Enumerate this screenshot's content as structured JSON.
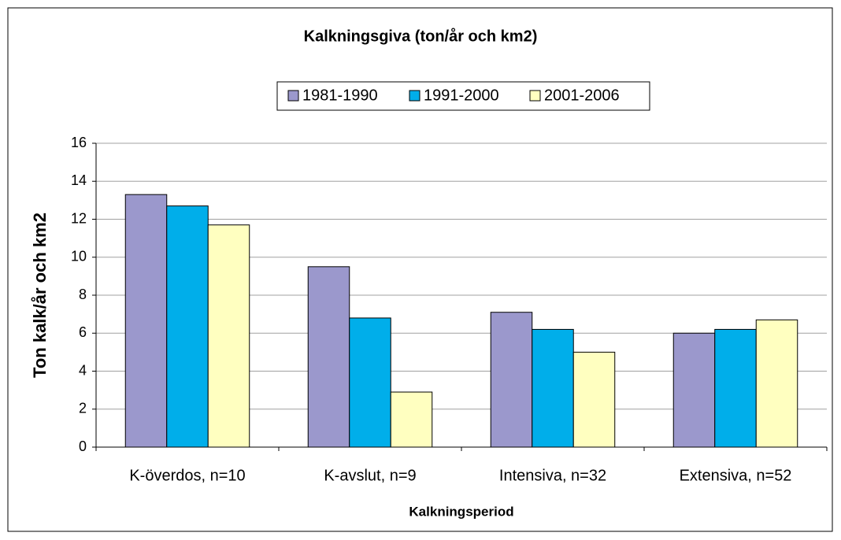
{
  "chart_data": {
    "type": "bar",
    "title": "Kalkningsgiva (ton/år och km2)",
    "x_label": "Kalkningsperiod",
    "y_label": "Ton kalk/år och km2",
    "categories": [
      "K-överdos, n=10",
      "K-avslut, n=9",
      "Intensiva, n=32",
      "Extensiva, n=52"
    ],
    "series": [
      {
        "name": "1981-1990",
        "color": "#9b98cc",
        "values": [
          13.3,
          9.5,
          7.1,
          6.0
        ]
      },
      {
        "name": "1991-2000",
        "color": "#00aeea",
        "values": [
          12.7,
          6.8,
          6.2,
          6.2
        ]
      },
      {
        "name": "2001-2006",
        "color": "#ffffc0",
        "values": [
          11.7,
          2.9,
          5.0,
          6.7
        ]
      }
    ],
    "ylim": [
      0,
      16
    ],
    "yticks": [
      0,
      2,
      4,
      6,
      8,
      10,
      12,
      14,
      16
    ],
    "grid": true,
    "legend": "top"
  }
}
